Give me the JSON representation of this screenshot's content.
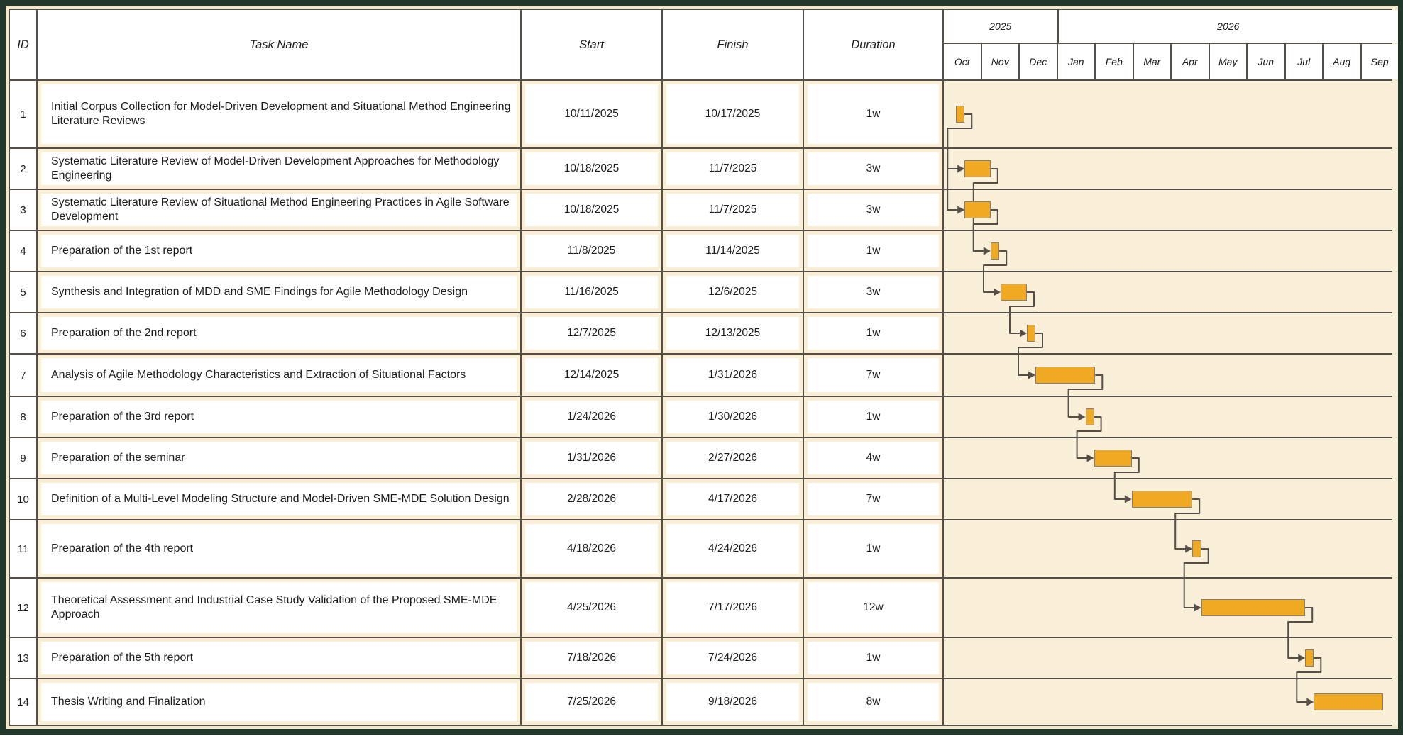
{
  "table": {
    "headers": {
      "id": "ID",
      "task": "Task Name",
      "start": "Start",
      "finish": "Finish",
      "duration": "Duration"
    },
    "timeline": {
      "years": [
        {
          "label": "2025",
          "months": 3
        },
        {
          "label": "2026",
          "months": 9
        }
      ],
      "months": [
        "Oct",
        "Nov",
        "Dec",
        "Jan",
        "Feb",
        "Mar",
        "Apr",
        "May",
        "Jun",
        "Jul",
        "Aug",
        "Sep"
      ]
    }
  },
  "colors": {
    "frame_green": "#22382a",
    "frame_cream": "#f2e8cb",
    "grid": "#564f48",
    "cell_cream": "#faefd5",
    "gantt_background": "#faf0da",
    "bar_fill": "#f0a922",
    "bar_border": "#8a7e6e",
    "connector": "#564f48",
    "text": "#1d1d1b"
  },
  "chart_data": {
    "type": "bar",
    "variant": "gantt",
    "title": "",
    "x_axis": {
      "unit": "month",
      "tick_labels": [
        "Oct",
        "Nov",
        "Dec",
        "Jan",
        "Feb",
        "Mar",
        "Apr",
        "May",
        "Jun",
        "Jul",
        "Aug",
        "Sep"
      ],
      "year_bands": [
        {
          "label": "2025",
          "months": [
            "Oct",
            "Nov",
            "Dec"
          ]
        },
        {
          "label": "2026",
          "months": [
            "Jan",
            "Feb",
            "Mar",
            "Apr",
            "May",
            "Jun",
            "Jul",
            "Aug",
            "Sep"
          ]
        }
      ]
    },
    "tasks": [
      {
        "id": 1,
        "name": "Initial Corpus Collection for Model-Driven Development and Situational Method Engineering Literature Reviews",
        "start": "10/11/2025",
        "finish": "10/17/2025",
        "duration": "1w"
      },
      {
        "id": 2,
        "name": "Systematic Literature Review of Model-Driven Development Approaches for Methodology Engineering",
        "start": "10/18/2025",
        "finish": "11/7/2025",
        "duration": "3w"
      },
      {
        "id": 3,
        "name": "Systematic Literature Review of Situational Method Engineering Practices in Agile Software Development",
        "start": "10/18/2025",
        "finish": "11/7/2025",
        "duration": "3w"
      },
      {
        "id": 4,
        "name": "Preparation of the 1st report",
        "start": "11/8/2025",
        "finish": "11/14/2025",
        "duration": "1w"
      },
      {
        "id": 5,
        "name": "Synthesis and Integration of MDD and SME Findings for Agile Methodology Design",
        "start": "11/16/2025",
        "finish": "12/6/2025",
        "duration": "3w"
      },
      {
        "id": 6,
        "name": "Preparation of the 2nd report",
        "start": "12/7/2025",
        "finish": "12/13/2025",
        "duration": "1w"
      },
      {
        "id": 7,
        "name": "Analysis of Agile Methodology Characteristics and Extraction of Situational Factors",
        "start": "12/14/2025",
        "finish": "1/31/2026",
        "duration": "7w"
      },
      {
        "id": 8,
        "name": "Preparation of the 3rd report",
        "start": "1/24/2026",
        "finish": "1/30/2026",
        "duration": "1w"
      },
      {
        "id": 9,
        "name": "Preparation of the seminar",
        "start": "1/31/2026",
        "finish": "2/27/2026",
        "duration": "4w"
      },
      {
        "id": 10,
        "name": "Definition of a Multi-Level Modeling Structure and Model-Driven SME-MDE Solution Design",
        "start": "2/28/2026",
        "finish": "4/17/2026",
        "duration": "7w"
      },
      {
        "id": 11,
        "name": "Preparation of the 4th report",
        "start": "4/18/2026",
        "finish": "4/24/2026",
        "duration": "1w"
      },
      {
        "id": 12,
        "name": "Theoretical Assessment and Industrial Case Study Validation of the Proposed SME-MDE Approach",
        "start": "4/25/2026",
        "finish": "7/17/2026",
        "duration": "12w"
      },
      {
        "id": 13,
        "name": "Preparation of the 5th report",
        "start": "7/18/2026",
        "finish": "7/24/2026",
        "duration": "1w"
      },
      {
        "id": 14,
        "name": "Thesis Writing and Finalization",
        "start": "7/25/2026",
        "finish": "9/18/2026",
        "duration": "8w"
      }
    ],
    "dependencies": [
      [
        1,
        2
      ],
      [
        1,
        3
      ],
      [
        2,
        4
      ],
      [
        3,
        4
      ],
      [
        4,
        5
      ],
      [
        5,
        6
      ],
      [
        6,
        7
      ],
      [
        7,
        8
      ],
      [
        8,
        9
      ],
      [
        9,
        10
      ],
      [
        10,
        11
      ],
      [
        11,
        12
      ],
      [
        12,
        13
      ],
      [
        13,
        14
      ]
    ]
  }
}
